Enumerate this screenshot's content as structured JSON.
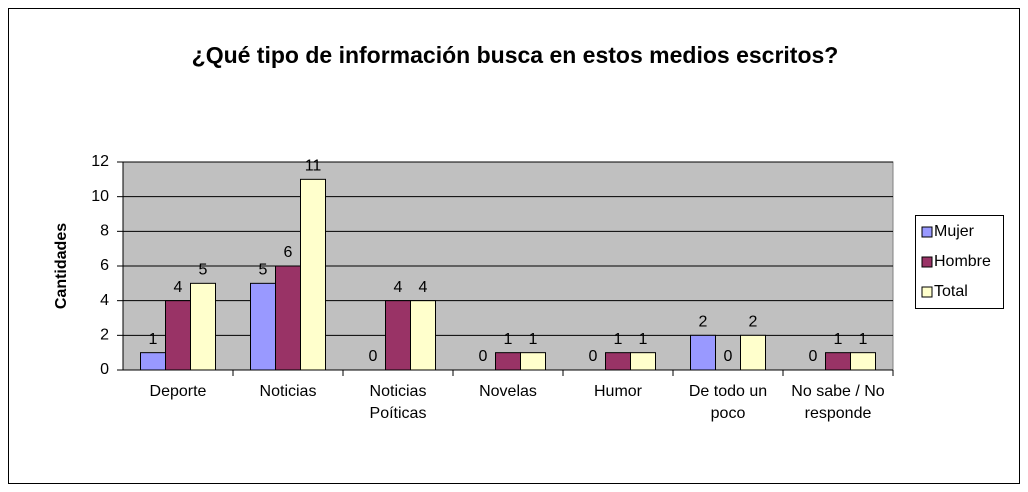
{
  "chart_data": {
    "type": "bar",
    "title": "¿Qué tipo de información busca en estos medios escritos?",
    "y_label": "Cantidades",
    "categories": [
      "Deporte",
      "Noticias",
      "Noticias Poíticas",
      "Novelas",
      "Humor",
      "De todo un poco",
      "No sabe / No responde"
    ],
    "series": [
      {
        "name": "Mujer",
        "color": "#9999ff",
        "values": [
          1,
          5,
          0,
          0,
          0,
          2,
          0
        ]
      },
      {
        "name": "Hombre",
        "color": "#993366",
        "values": [
          4,
          6,
          4,
          1,
          1,
          0,
          1
        ]
      },
      {
        "name": "Total",
        "color": "#ffffcc",
        "values": [
          5,
          11,
          4,
          1,
          1,
          2,
          1
        ]
      }
    ],
    "ylim": [
      0,
      12
    ],
    "yticks": [
      0,
      2,
      4,
      6,
      8,
      10,
      12
    ],
    "grid": true,
    "legend": "right"
  }
}
